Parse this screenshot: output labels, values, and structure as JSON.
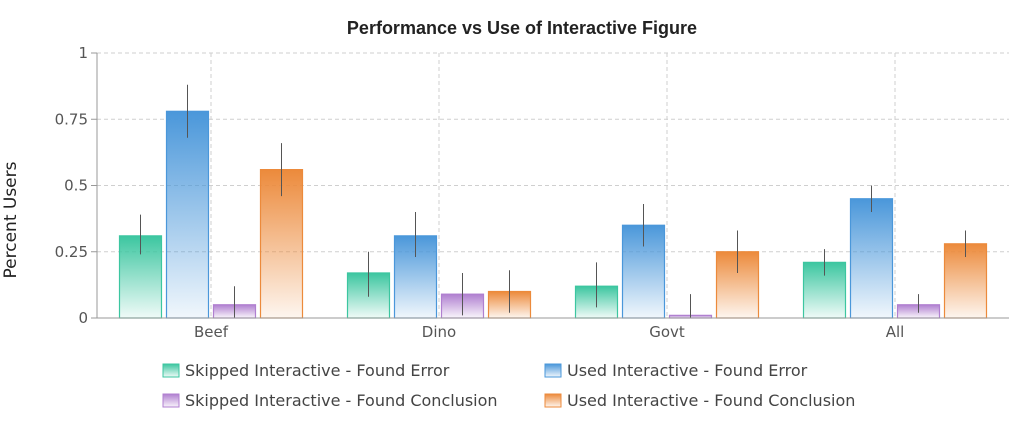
{
  "chart_data": {
    "type": "bar",
    "title": "Performance vs Use of Interactive Figure",
    "xlabel": "",
    "ylabel": "Percent Users",
    "ylim": [
      0,
      1
    ],
    "yticks": [
      "0",
      "0.25",
      "0.5",
      "0.75",
      "1"
    ],
    "grid": true,
    "legend_position": "bottom",
    "categories": [
      "Beef",
      "Dino",
      "Govt",
      "All"
    ],
    "series": [
      {
        "name": "Skipped Interactive - Found Error",
        "color": "#3cc6a0",
        "values": [
          0.31,
          0.17,
          0.12,
          0.21
        ],
        "error_low": [
          0.24,
          0.08,
          0.04,
          0.16
        ],
        "error_high": [
          0.39,
          0.25,
          0.21,
          0.26
        ]
      },
      {
        "name": "Used Interactive - Found Error",
        "color": "#4a97da",
        "values": [
          0.78,
          0.31,
          0.35,
          0.45
        ],
        "error_low": [
          0.68,
          0.23,
          0.27,
          0.4
        ],
        "error_high": [
          0.88,
          0.4,
          0.43,
          0.5
        ]
      },
      {
        "name": "Skipped Interactive - Found Conclusion",
        "color": "#b07fd0",
        "values": [
          0.05,
          0.09,
          0.01,
          0.05
        ],
        "error_low": [
          0.0,
          0.01,
          0.0,
          0.02
        ],
        "error_high": [
          0.12,
          0.17,
          0.09,
          0.09
        ]
      },
      {
        "name": "Used Interactive - Found Conclusion",
        "color": "#ec8a3b",
        "values": [
          0.56,
          0.1,
          0.25,
          0.28
        ],
        "error_low": [
          0.46,
          0.02,
          0.17,
          0.23
        ],
        "error_high": [
          0.66,
          0.18,
          0.33,
          0.33
        ]
      }
    ]
  }
}
